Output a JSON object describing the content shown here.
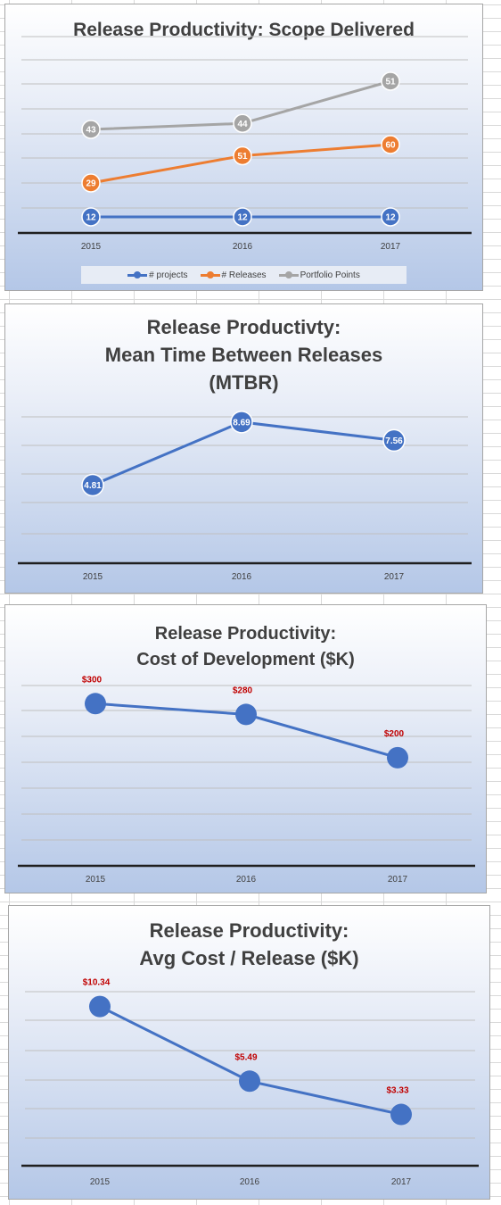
{
  "chart_data": [
    {
      "type": "line",
      "title": "Release Productivity: Scope Delivered",
      "categories": [
        "2015",
        "2016",
        "2017"
      ],
      "series": [
        {
          "name": "# projects",
          "values": [
            12,
            12,
            12
          ],
          "color": "#4472c4"
        },
        {
          "name": "# Releases",
          "values": [
            29,
            51,
            60
          ],
          "color": "#ed7d31"
        },
        {
          "name": "Portfolio Points",
          "values": [
            43,
            44,
            51
          ],
          "color": "#a5a5a5"
        }
      ],
      "data_labels": [
        "12",
        "12",
        "12",
        "29",
        "51",
        "60",
        "43",
        "44",
        "51"
      ],
      "legend": "bottom",
      "grid": true
    },
    {
      "type": "line",
      "title": "Release Productivty:\nMean Time Between Releases\n(MTBR)",
      "categories": [
        "2015",
        "2016",
        "2017"
      ],
      "series": [
        {
          "values": [
            4.81,
            8.69,
            7.56
          ],
          "color": "#4472c4",
          "labels": [
            "4.81",
            "8.69",
            "7.56"
          ]
        }
      ],
      "ylim": [
        0,
        10
      ],
      "grid": true
    },
    {
      "type": "line",
      "title": "Release Productivity:\nCost of Development ($K)",
      "categories": [
        "2015",
        "2016",
        "2017"
      ],
      "series": [
        {
          "values": [
            300,
            280,
            200
          ],
          "color": "#4472c4",
          "labels": [
            "$300",
            "$280",
            "$200"
          ]
        }
      ],
      "ylim": [
        0,
        350
      ],
      "grid": true
    },
    {
      "type": "line",
      "title": "Release Productivity:\nAvg Cost / Release ($K)",
      "categories": [
        "2015",
        "2016",
        "2017"
      ],
      "series": [
        {
          "values": [
            10.34,
            5.49,
            3.33
          ],
          "color": "#4472c4",
          "labels": [
            "$10.34",
            "$5.49",
            "$3.33"
          ]
        }
      ],
      "ylim": [
        0,
        12
      ],
      "grid": true
    }
  ]
}
